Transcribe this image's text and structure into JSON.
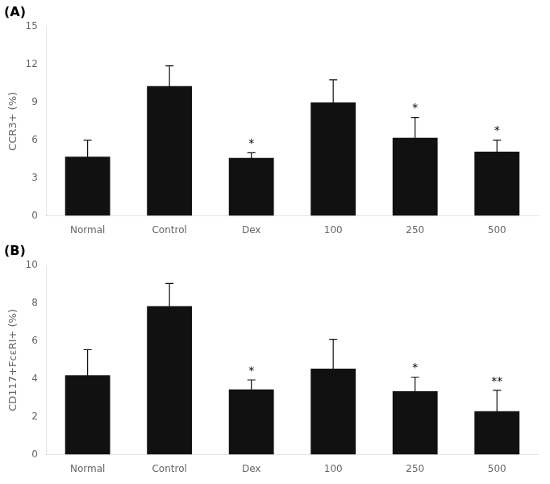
{
  "chart_data": [
    {
      "type": "bar",
      "title": "(A)",
      "categories": [
        "Normal",
        "Control",
        "Dex",
        "100",
        "250",
        "500"
      ],
      "values": [
        4.7,
        10.3,
        4.6,
        9.0,
        6.2,
        5.1
      ],
      "errors": [
        1.3,
        1.6,
        0.4,
        1.8,
        1.6,
        0.9
      ],
      "color": "#111111",
      "ylabel": "CCR3+ (%)",
      "ylim": [
        0,
        15
      ],
      "yticks": [
        0,
        3,
        6,
        9,
        12,
        15
      ],
      "annotations": [
        {
          "category": "Dex",
          "text": "*"
        },
        {
          "category": "250",
          "text": "*"
        },
        {
          "category": "500",
          "text": "*"
        }
      ],
      "grid": false
    },
    {
      "type": "bar",
      "title": "(B)",
      "categories": [
        "Normal",
        "Control",
        "Dex",
        "100",
        "250",
        "500"
      ],
      "values": [
        4.2,
        7.85,
        3.45,
        4.55,
        3.35,
        2.3
      ],
      "errors": [
        1.35,
        1.2,
        0.5,
        1.55,
        0.75,
        1.1
      ],
      "color": "#111111",
      "ylabel": "CD117+FcεRI+ (%)",
      "ylim": [
        0,
        10
      ],
      "yticks": [
        0,
        2,
        4,
        6,
        8,
        10
      ],
      "annotations": [
        {
          "category": "Dex",
          "text": "*"
        },
        {
          "category": "250",
          "text": "*"
        },
        {
          "category": "500",
          "text": "**"
        }
      ],
      "grid": false
    }
  ]
}
